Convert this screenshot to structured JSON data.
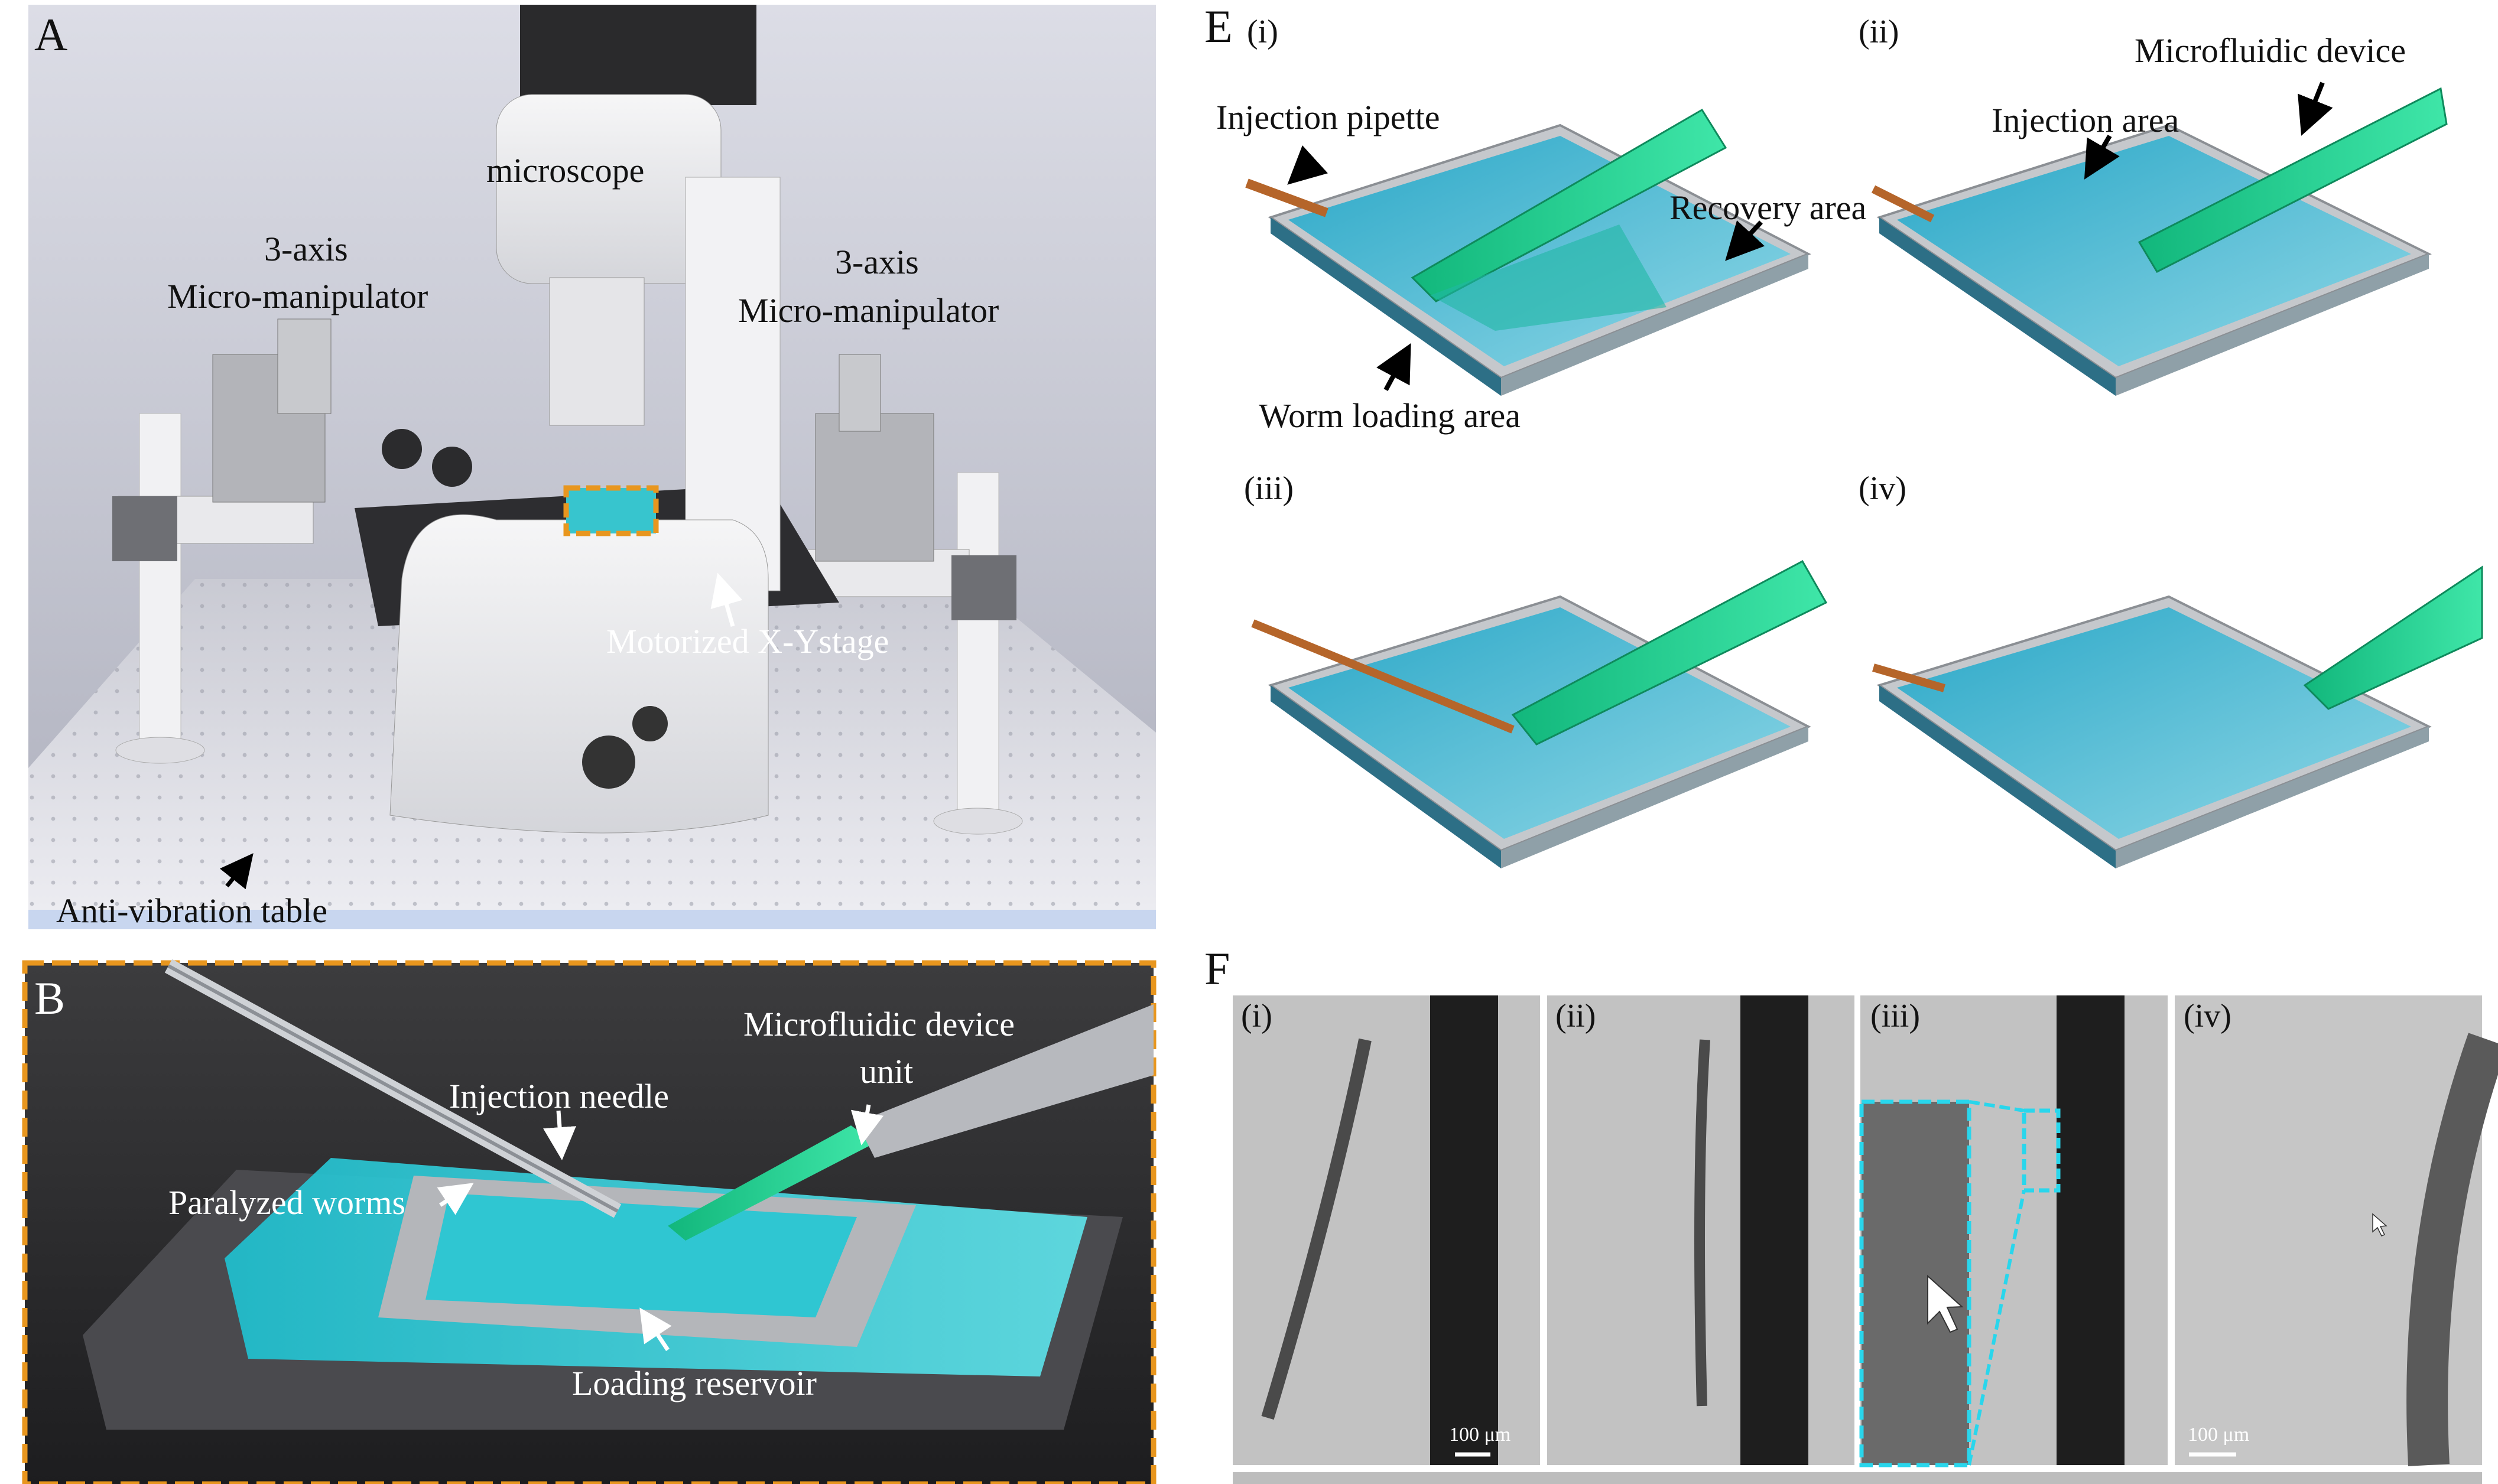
{
  "panels": {
    "A": {
      "letter": "A",
      "labels": {
        "microscope": "microscope",
        "manip_left_1": "3-axis",
        "manip_left_2": "Micro-manipulator",
        "manip_right_1": "3-axis",
        "manip_right_2": "Micro-manipulator",
        "stage": "Motorized X-Ystage",
        "table": "Anti-vibration table"
      }
    },
    "B": {
      "letter": "B",
      "labels": {
        "device_1": "Microfluidic device",
        "device_2": "unit",
        "needle": "Injection needle",
        "worms": "Paralyzed worms",
        "reservoir": "Loading reservoir"
      }
    },
    "E": {
      "letter": "E",
      "sub": [
        "(i)",
        "(ii)",
        "(iii)",
        "(iv)"
      ],
      "labels": {
        "pipette": "Injection pipette",
        "recovery": "Recovery area",
        "loading": "Worm loading area",
        "injection_area": "Injection area",
        "device": "Microfluidic device"
      }
    },
    "F": {
      "letter": "F",
      "sub": [
        "(i)",
        "(ii)",
        "(iii)",
        "(iv)"
      ],
      "scale": "100 μm",
      "scale_2": "100 μm"
    }
  },
  "colors": {
    "highlight_orange": "#e8961e",
    "device_green": "#22c98c",
    "chip_blue": "#3fa3c4",
    "zoom_cyan": "#29d6ec"
  }
}
